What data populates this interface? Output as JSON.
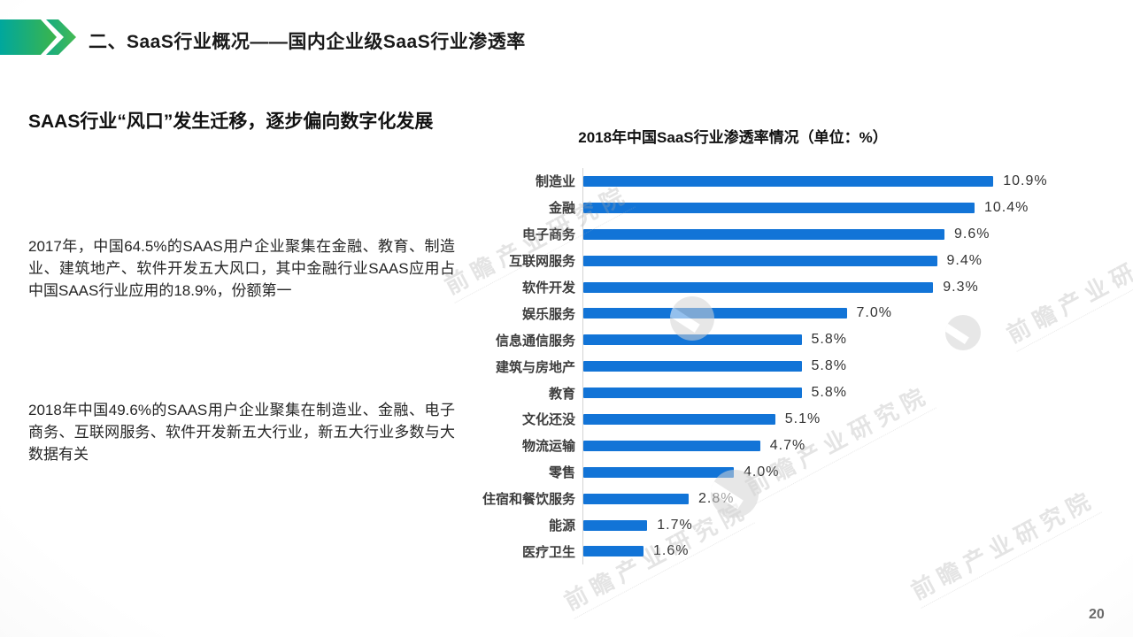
{
  "header": {
    "title": "二、SaaS行业概况——国内企业级SaaS行业渗透率"
  },
  "left_panel": {
    "heading": "SAAS行业“风口”发生迁移，逐步偏向数字化发展",
    "paragraph_2017": "2017年，中国64.5%的SAAS用户企业聚集在金融、教育、制造业、建筑地产、软件开发五大风口，其中金融行业SAAS应用占中国SAAS行业应用的18.9%，份额第一",
    "paragraph_2018": "2018年中国49.6%的SAAS用户企业聚集在制造业、金融、电子商务、互联网服务、软件开发新五大行业，新五大行业多数与大数据有关"
  },
  "chart_data": {
    "type": "bar",
    "orientation": "horizontal",
    "title": "2018年中国SaaS行业渗透率情况（单位：%）",
    "unit": "%",
    "categories": [
      "制造业",
      "金融",
      "电子商务",
      "互联网服务",
      "软件开发",
      "娱乐服务",
      "信息通信服务",
      "建筑与房地产",
      "教育",
      "文化还没",
      "物流运输",
      "零售",
      "住宿和餐饮服务",
      "能源",
      "医疗卫生"
    ],
    "values": [
      10.9,
      10.4,
      9.6,
      9.4,
      9.3,
      7.0,
      5.8,
      5.8,
      5.8,
      5.1,
      4.7,
      4.0,
      2.8,
      1.7,
      1.6
    ],
    "value_labels": [
      "10.9%",
      "10.4%",
      "9.6%",
      "9.4%",
      "9.3%",
      "7.0%",
      "5.8%",
      "5.8%",
      "5.8%",
      "5.1%",
      "4.7%",
      "4.0%",
      "2.8%",
      "1.7%",
      "1.6%"
    ],
    "xlim": [
      0,
      11.5
    ],
    "grid": false,
    "legend": null,
    "bar_color": "#1274d7",
    "value_label_position": "end"
  },
  "watermark": {
    "text": "前瞻产业研究院"
  },
  "footer": {
    "page_number": "20"
  },
  "colors": {
    "accent_teal": "#00a79d",
    "accent_green": "#3cb54b",
    "bar_blue": "#1274d7"
  }
}
